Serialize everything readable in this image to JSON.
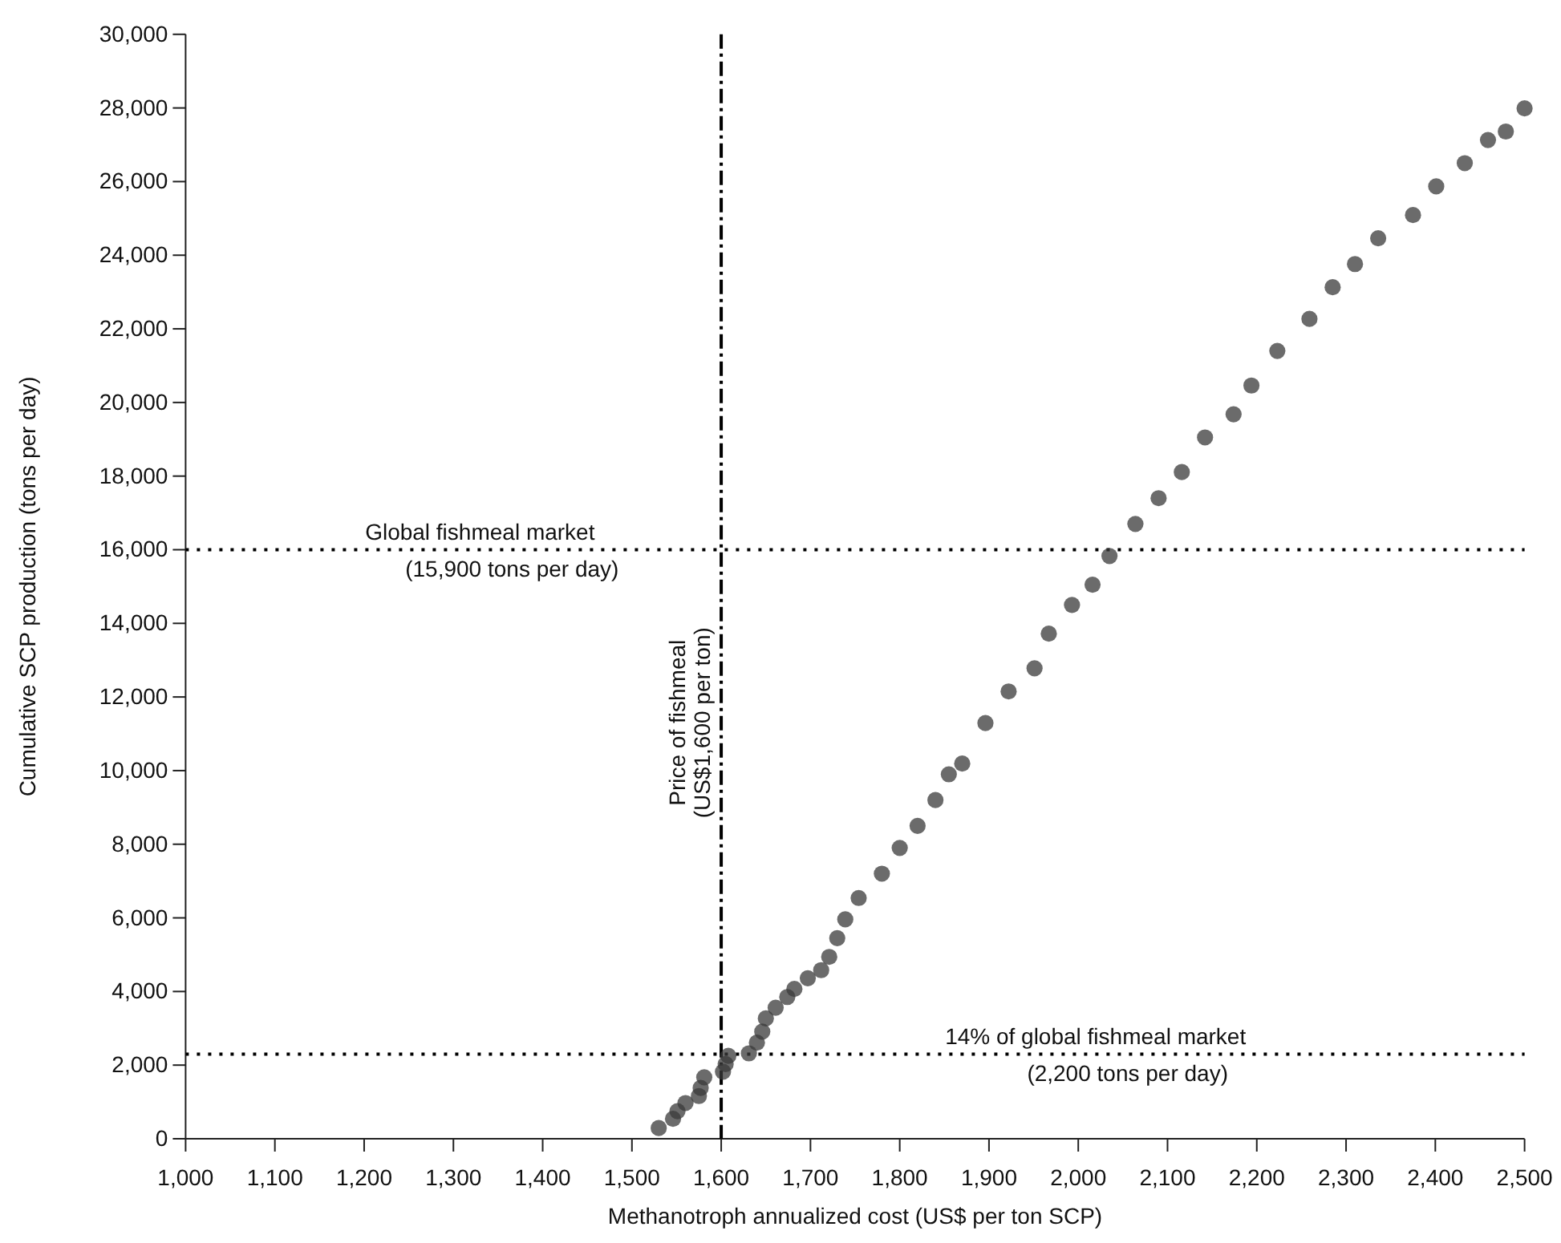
{
  "chart_data": {
    "type": "scatter",
    "xlabel": "Methanotroph annualized cost (US$ per ton SCP)",
    "ylabel": "Cumulative SCP production (tons per day)",
    "xlim": [
      1000,
      2500
    ],
    "xticks": [
      {
        "value": 1000,
        "label": "1,000"
      },
      {
        "value": 1100,
        "label": "1,100"
      },
      {
        "value": 1200,
        "label": "1,200"
      },
      {
        "value": 1300,
        "label": "1,300"
      },
      {
        "value": 1400,
        "label": "1,400"
      },
      {
        "value": 1500,
        "label": "1,500"
      },
      {
        "value": 1600,
        "label": "1,600"
      },
      {
        "value": 1700,
        "label": "1,700"
      },
      {
        "value": 1800,
        "label": "1,800"
      },
      {
        "value": 1900,
        "label": "1,900"
      },
      {
        "value": 2000,
        "label": "2,000"
      },
      {
        "value": 2100,
        "label": "2,100"
      },
      {
        "value": 2200,
        "label": "2,200"
      },
      {
        "value": 2300,
        "label": "2,300"
      },
      {
        "value": 2400,
        "label": "2,400"
      },
      {
        "value": 2500,
        "label": "2,500"
      }
    ],
    "ylim": [
      0,
      30000
    ],
    "yticks": [
      0,
      {
        "value": 2000,
        "label": "2,000"
      },
      {
        "value": 4000,
        "label": "4,000"
      },
      {
        "value": 6000,
        "label": "6,000"
      },
      {
        "value": 8000,
        "label": "8,000"
      },
      {
        "value": 10000,
        "label": "10,000"
      },
      {
        "value": 12000,
        "label": "12,000"
      },
      {
        "value": 14000,
        "label": "14,000"
      },
      {
        "value": 16000,
        "label": "16,000"
      },
      {
        "value": 18000,
        "label": "18,000"
      },
      {
        "value": 20000,
        "label": "20,000"
      },
      {
        "value": 22000,
        "label": "22,000"
      },
      {
        "value": 24000,
        "label": "24,000"
      },
      {
        "value": 26000,
        "label": "26,000"
      },
      {
        "value": 28000,
        "label": "28,000"
      },
      {
        "value": 30000,
        "label": "30,000"
      }
    ],
    "grid": false,
    "marker": "circle",
    "series": [
      {
        "color": "#3a3a3a",
        "x": [
          1530,
          1546,
          1551,
          1560,
          1575,
          1577,
          1581,
          1602,
          1605,
          1608,
          1631,
          1640,
          1646,
          1650,
          1661,
          1674,
          1682,
          1697,
          1712,
          1721,
          1730,
          1739,
          1754,
          1780,
          1800,
          1820,
          1840,
          1855,
          1870,
          1896,
          1922,
          1951,
          1967,
          1993,
          2016,
          2035,
          2064,
          2090,
          2116,
          2142,
          2174,
          2194,
          2223,
          2259,
          2285,
          2310,
          2336,
          2375,
          2401,
          2433,
          2459,
          2479,
          2500
        ],
        "values": [
          290,
          540,
          750,
          970,
          1160,
          1380,
          1670,
          1820,
          2030,
          2250,
          2320,
          2610,
          2910,
          3270,
          3560,
          3850,
          4070,
          4360,
          4580,
          4940,
          5450,
          5960,
          6540,
          7200,
          7900,
          8500,
          9200,
          9900,
          10190,
          11290,
          12150,
          12780,
          13720,
          14500,
          15050,
          15830,
          16700,
          17400,
          18110,
          19050,
          19680,
          20460,
          21400,
          22270,
          23130,
          23760,
          24460,
          25090,
          25870,
          26500,
          27130,
          27360,
          27990
        ]
      }
    ],
    "ref_lines": [
      {
        "axis": "y",
        "value": 16000,
        "label": "Global fishmeal market (15,900 tons per day)",
        "line_style": "dotted",
        "color": "#000000"
      },
      {
        "axis": "y",
        "value": 2300,
        "label": "14% of global fishmeal market (2,200 tons per day)",
        "line_style": "dotted",
        "color": "#000000"
      },
      {
        "axis": "x",
        "value": 1600,
        "label": "Price of fishmeal (US$1,600 per ton)",
        "line_style": "dashed",
        "color": "#000000"
      }
    ]
  }
}
